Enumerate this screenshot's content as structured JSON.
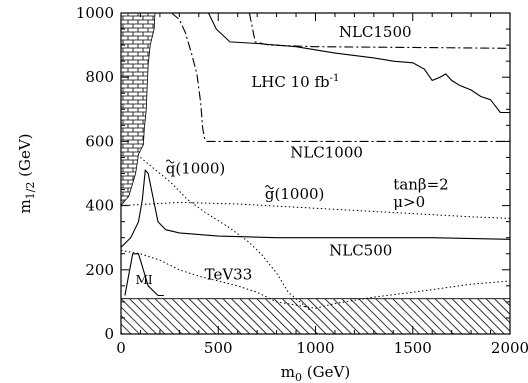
{
  "chart_data": {
    "type": "line",
    "title": "",
    "xlabel": "m",
    "xlabel_sub": "0",
    "xlabel_unit": " (GeV)",
    "ylabel": "m",
    "ylabel_sub": "1/2",
    "ylabel_unit": " (GeV)",
    "xlim": [
      0,
      2000
    ],
    "ylim": [
      0,
      1000
    ],
    "x_ticks": [
      0,
      500,
      1000,
      1500,
      2000
    ],
    "y_ticks": [
      0,
      200,
      400,
      600,
      800,
      1000
    ],
    "x_tick_labels": [
      "0",
      "500",
      "1000",
      "1500",
      "2000"
    ],
    "y_tick_labels": [
      "0",
      "200",
      "400",
      "600",
      "800",
      "1000"
    ],
    "grid": false,
    "series": [
      {
        "key": "lhc",
        "style": "solid",
        "points": [
          [
            450,
            1000
          ],
          [
            490,
            950
          ],
          [
            560,
            910
          ],
          [
            700,
            905
          ],
          [
            900,
            895
          ],
          [
            1100,
            875
          ],
          [
            1300,
            860
          ],
          [
            1400,
            850
          ],
          [
            1500,
            845
          ],
          [
            1560,
            825
          ],
          [
            1600,
            790
          ],
          [
            1640,
            800
          ],
          [
            1670,
            810
          ],
          [
            1700,
            790
          ],
          [
            1740,
            775
          ],
          [
            1800,
            760
          ],
          [
            1850,
            740
          ],
          [
            1900,
            730
          ],
          [
            1950,
            690
          ],
          [
            2000,
            690
          ]
        ]
      },
      {
        "key": "nlc1500",
        "style": "dashdot",
        "points": [
          [
            260,
            1000
          ],
          [
            300,
            980
          ],
          [
            330,
            940
          ],
          [
            360,
            880
          ],
          [
            390,
            810
          ],
          [
            410,
            720
          ],
          [
            420,
            640
          ],
          [
            430,
            610
          ],
          [
            440,
            600
          ],
          [
            2000,
            600
          ]
        ]
      },
      {
        "key": "nlc1500_upper",
        "style": "dashdot",
        "points": [
          [
            660,
            1000
          ],
          [
            690,
            910
          ],
          [
            760,
            900
          ],
          [
            1000,
            895
          ],
          [
            1400,
            893
          ],
          [
            2000,
            890
          ]
        ]
      },
      {
        "key": "tev_solid",
        "style": "solid",
        "points": [
          [
            0,
            270
          ],
          [
            50,
            300
          ],
          [
            90,
            350
          ],
          [
            110,
            420
          ],
          [
            120,
            480
          ],
          [
            125,
            510
          ],
          [
            140,
            500
          ],
          [
            160,
            440
          ],
          [
            190,
            350
          ],
          [
            230,
            325
          ],
          [
            300,
            315
          ],
          [
            500,
            305
          ],
          [
            800,
            300
          ],
          [
            1200,
            300
          ],
          [
            1600,
            300
          ],
          [
            2000,
            295
          ]
        ]
      },
      {
        "key": "squark",
        "style": "dotted",
        "points": [
          [
            100,
            550
          ],
          [
            180,
            510
          ],
          [
            260,
            470
          ],
          [
            340,
            420
          ],
          [
            430,
            380
          ],
          [
            560,
            330
          ],
          [
            650,
            290
          ],
          [
            720,
            250
          ],
          [
            800,
            190
          ],
          [
            860,
            130
          ],
          [
            940,
            90
          ],
          [
            980,
            70
          ]
        ]
      },
      {
        "key": "gluino",
        "style": "dotted",
        "points": [
          [
            0,
            400
          ],
          [
            150,
            405
          ],
          [
            300,
            410
          ],
          [
            600,
            405
          ],
          [
            900,
            395
          ],
          [
            1200,
            385
          ],
          [
            1500,
            375
          ],
          [
            1800,
            365
          ],
          [
            2000,
            360
          ]
        ]
      },
      {
        "key": "tev33",
        "style": "dotted",
        "points": [
          [
            0,
            260
          ],
          [
            100,
            250
          ],
          [
            200,
            230
          ],
          [
            300,
            200
          ],
          [
            400,
            180
          ],
          [
            500,
            165
          ],
          [
            600,
            150
          ],
          [
            700,
            130
          ],
          [
            800,
            100
          ],
          [
            900,
            90
          ],
          [
            1000,
            80
          ],
          [
            1100,
            95
          ],
          [
            1300,
            115
          ],
          [
            1500,
            130
          ],
          [
            1800,
            155
          ],
          [
            2000,
            165
          ]
        ]
      },
      {
        "key": "mi",
        "style": "solid",
        "points": [
          [
            20,
            120
          ],
          [
            60,
            250
          ],
          [
            90,
            250
          ],
          [
            140,
            150
          ],
          [
            190,
            120
          ],
          [
            220,
            120
          ]
        ]
      }
    ],
    "annotations": [
      {
        "key": "nlc1500_label",
        "text": "NLC1500",
        "x": 1120,
        "y": 925
      },
      {
        "key": "lhc_label",
        "text": "LHC 10 fb",
        "sup": "-1",
        "x": 670,
        "y": 770
      },
      {
        "key": "nlc1000_label",
        "text": "NLC1000",
        "x": 870,
        "y": 550
      },
      {
        "key": "squark_label",
        "text": "q(1000)",
        "tilde": true,
        "x": 230,
        "y": 500
      },
      {
        "key": "gluino_label",
        "text": "g(1000)",
        "tilde": true,
        "x": 740,
        "y": 420
      },
      {
        "key": "tanbeta_label",
        "text": "tanβ=2",
        "x": 1400,
        "y": 450
      },
      {
        "key": "mu_label",
        "text": "μ>0",
        "x": 1400,
        "y": 395
      },
      {
        "key": "nlc500_label",
        "text": "NLC500",
        "x": 1070,
        "y": 245
      },
      {
        "key": "tev33_label",
        "text": "TeV33",
        "x": 430,
        "y": 170
      },
      {
        "key": "mi_label",
        "text": "MI",
        "x": 75,
        "y": 155
      }
    ],
    "regions": [
      {
        "key": "brick_excluded",
        "pattern": "brick",
        "points": [
          [
            0,
            1000
          ],
          [
            175,
            1000
          ],
          [
            170,
            950
          ],
          [
            150,
            900
          ],
          [
            140,
            840
          ],
          [
            135,
            780
          ],
          [
            130,
            700
          ],
          [
            120,
            640
          ],
          [
            115,
            590
          ],
          [
            90,
            560
          ],
          [
            75,
            500
          ],
          [
            40,
            430
          ],
          [
            0,
            400
          ]
        ]
      },
      {
        "key": "hatched_excluded",
        "pattern": "hatch",
        "points": [
          [
            0,
            110
          ],
          [
            2000,
            110
          ],
          [
            2000,
            0
          ],
          [
            0,
            0
          ]
        ]
      }
    ]
  }
}
